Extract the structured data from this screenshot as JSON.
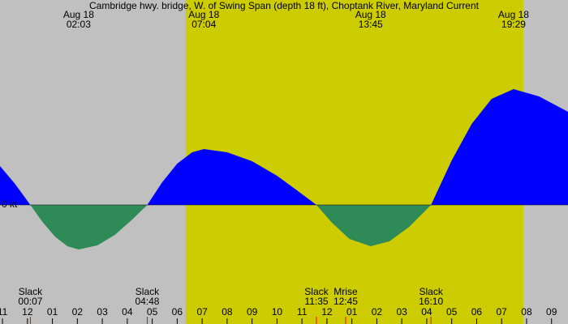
{
  "chart_data": {
    "type": "area",
    "title": "Cambridge hwy. bridge, W. of Swing Span (depth 18 ft), Choptank River, Maryland Current",
    "zero_label": "0 kt",
    "x": [
      -1.1,
      -0.5,
      0.117,
      0.6,
      1.1,
      1.6,
      2.05,
      2.8,
      3.5,
      4.2,
      4.8,
      5.4,
      6.0,
      6.6,
      7.07,
      8.0,
      9.0,
      10.0,
      10.8,
      11.58,
      12.2,
      12.9,
      13.75,
      14.5,
      15.3,
      16.17,
      17.0,
      17.8,
      18.6,
      19.48,
      20.5,
      21.66
    ],
    "values": [
      0.48,
      0.26,
      0,
      -0.21,
      -0.39,
      -0.51,
      -0.55,
      -0.5,
      -0.37,
      -0.18,
      0,
      0.28,
      0.51,
      0.65,
      0.69,
      0.65,
      0.54,
      0.36,
      0.18,
      0,
      -0.22,
      -0.42,
      -0.51,
      -0.45,
      -0.27,
      0,
      0.55,
      1.0,
      1.31,
      1.43,
      1.34,
      1.15
    ],
    "flood_color": "#0000ff",
    "ebb_color": "#2e8b57",
    "background_color": "#c0c0c0",
    "daylight_color": "#cccc00",
    "daylight": [
      6.34,
      19.87
    ],
    "xlim": [
      -1.1,
      21.66
    ],
    "ylim": [
      -1.47,
      2.53
    ],
    "xticks": [
      {
        "value": -1,
        "label": "11"
      },
      {
        "value": 0,
        "label": "12"
      },
      {
        "value": 1,
        "label": "01"
      },
      {
        "value": 2,
        "label": "02"
      },
      {
        "value": 3,
        "label": "03"
      },
      {
        "value": 4,
        "label": "04"
      },
      {
        "value": 5,
        "label": "05"
      },
      {
        "value": 6,
        "label": "06"
      },
      {
        "value": 7,
        "label": "07"
      },
      {
        "value": 8,
        "label": "08"
      },
      {
        "value": 9,
        "label": "09"
      },
      {
        "value": 10,
        "label": "10"
      },
      {
        "value": 11,
        "label": "11"
      },
      {
        "value": 12,
        "label": "12"
      },
      {
        "value": 13,
        "label": "01"
      },
      {
        "value": 14,
        "label": "02"
      },
      {
        "value": 15,
        "label": "03"
      },
      {
        "value": 16,
        "label": "04"
      },
      {
        "value": 17,
        "label": "05"
      },
      {
        "value": 18,
        "label": "06"
      },
      {
        "value": 19,
        "label": "07"
      },
      {
        "value": 20,
        "label": "08"
      },
      {
        "value": 21,
        "label": "09"
      }
    ],
    "peaks": [
      {
        "x": 2.05,
        "date": "Aug 18",
        "time": "02:03"
      },
      {
        "x": 7.07,
        "date": "Aug 18",
        "time": "07:04"
      },
      {
        "x": 13.75,
        "date": "Aug 18",
        "time": "13:45"
      },
      {
        "x": 19.48,
        "date": "Aug 18",
        "time": "19:29"
      }
    ],
    "events": [
      {
        "x": 0.117,
        "label": "Slack",
        "time": "00:07"
      },
      {
        "x": 4.8,
        "label": "Slack",
        "time": "04:48"
      },
      {
        "x": 11.58,
        "label": "Slack",
        "time": "11:35"
      },
      {
        "x": 12.75,
        "label": "Mrise",
        "time": "12:45"
      },
      {
        "x": 16.17,
        "label": "Slack",
        "time": "16:10"
      }
    ]
  }
}
